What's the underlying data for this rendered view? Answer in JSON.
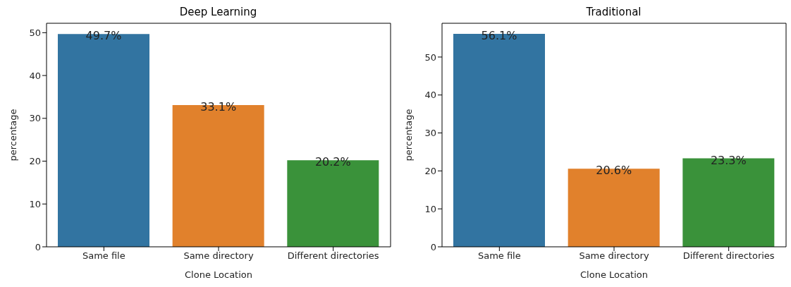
{
  "chart_data": [
    {
      "type": "bar",
      "title": "Deep Learning",
      "xlabel": "Clone Location",
      "ylabel": "percentage",
      "categories": [
        "Same file",
        "Same directory",
        "Different directories"
      ],
      "values": [
        49.7,
        33.1,
        20.2
      ],
      "colors": [
        "#3274a1",
        "#e1812c",
        "#3a923a"
      ],
      "value_labels": [
        "49.7%",
        "33.1%",
        "20.2%"
      ],
      "ylim": [
        0,
        52.2
      ],
      "yticks": [
        0,
        10,
        20,
        30,
        40,
        50
      ],
      "grid": false,
      "legend": false
    },
    {
      "type": "bar",
      "title": "Traditional",
      "xlabel": "Clone Location",
      "ylabel": "percentage",
      "categories": [
        "Same file",
        "Same directory",
        "Different directories"
      ],
      "values": [
        56.1,
        20.6,
        23.3
      ],
      "colors": [
        "#3274a1",
        "#e1812c",
        "#3a923a"
      ],
      "value_labels": [
        "56.1%",
        "20.6%",
        "23.3%"
      ],
      "ylim": [
        0,
        58.9
      ],
      "yticks": [
        0,
        10,
        20,
        30,
        40,
        50
      ],
      "grid": false,
      "legend": false
    }
  ]
}
